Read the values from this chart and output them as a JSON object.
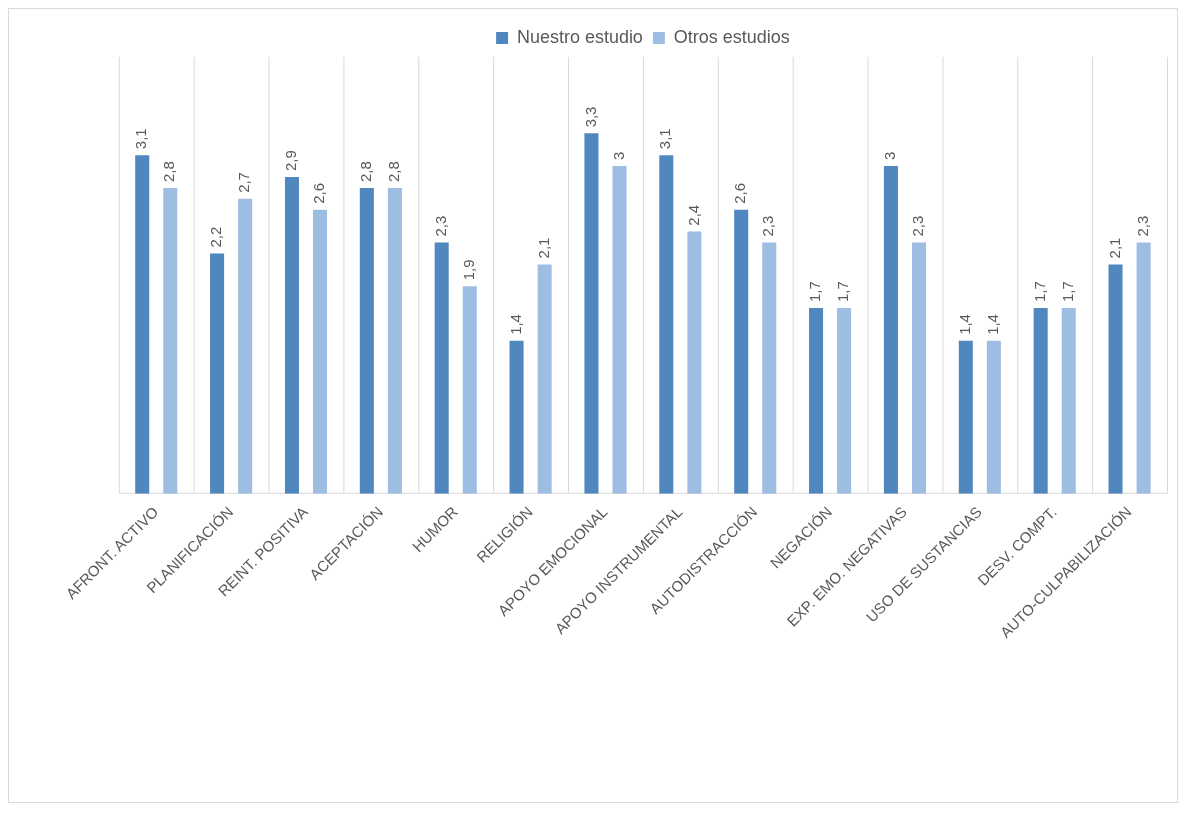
{
  "chart_data": {
    "type": "bar",
    "categories": [
      "AFRONT. ACTIVO",
      "PLANIFICACIÓN",
      "REINT. POSITIVA",
      "ACEPTACIÓN",
      "HUMOR",
      "RELIGIÓN",
      "APOYO EMOCIONAL",
      "APOYO INSTRUMENTAL",
      "AUTODISTRACCIÓN",
      "NEGACIÓN",
      "EXP. EMO. NEGATIVAS",
      "USO DE SUSTANCIAS",
      "DESV. COMPT.",
      "AUTO-CULPABILIZACIÓN"
    ],
    "series": [
      {
        "name": "Nuestro estudio",
        "color": "#4f87be",
        "values": [
          3.1,
          2.2,
          2.9,
          2.8,
          2.3,
          1.4,
          3.3,
          3.1,
          2.6,
          1.7,
          3,
          1.4,
          1.7,
          2.1
        ],
        "value_labels": [
          "3,1",
          "2,2",
          "2,9",
          "2,8",
          "2,3",
          "1,4",
          "3,3",
          "3,1",
          "2,6",
          "1,7",
          "3",
          "1,4",
          "1,7",
          "2,1"
        ]
      },
      {
        "name": "Otros estudios",
        "color": "#9dbde3",
        "values": [
          2.8,
          2.7,
          2.6,
          2.8,
          1.9,
          2.1,
          3,
          2.4,
          2.3,
          1.7,
          2.3,
          1.4,
          1.7,
          2.3
        ],
        "value_labels": [
          "2,8",
          "2,7",
          "2,6",
          "2,8",
          "1,9",
          "2,1",
          "3",
          "2,4",
          "2,3",
          "1,7",
          "2,3",
          "1,4",
          "1,7",
          "2,3"
        ]
      }
    ],
    "ylim": [
      0,
      4
    ],
    "grid": "x",
    "legend": "top",
    "tick_labels": "x"
  }
}
